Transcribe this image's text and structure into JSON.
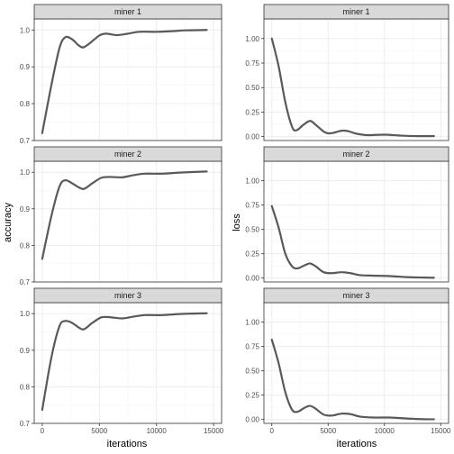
{
  "chart_data": {
    "type": "line",
    "layout": "facet-grid",
    "x_axis": {
      "label": "iterations",
      "ticks": [
        0,
        5000,
        10000,
        15000
      ],
      "tick_labels": [
        "0",
        "5000",
        "10000",
        "15000"
      ],
      "range": [
        -700,
        15700
      ]
    },
    "columns": [
      {
        "ylabel": "accuracy",
        "ylim": [
          0.7,
          1.03
        ],
        "yticks": [
          0.7,
          0.8,
          0.9,
          1.0
        ],
        "ytick_labels": [
          "0.7",
          "0.8",
          "0.9",
          "1.0"
        ],
        "panels": [
          {
            "strip": "miner 1",
            "points": [
              [
                0,
                0.72
              ],
              [
                800,
                0.85
              ],
              [
                1500,
                0.95
              ],
              [
                2000,
                0.98
              ],
              [
                2600,
                0.975
              ],
              [
                3200,
                0.958
              ],
              [
                3600,
                0.953
              ],
              [
                4200,
                0.965
              ],
              [
                5000,
                0.985
              ],
              [
                5600,
                0.99
              ],
              [
                6500,
                0.986
              ],
              [
                7500,
                0.99
              ],
              [
                8500,
                0.995
              ],
              [
                10000,
                0.995
              ],
              [
                11500,
                0.997
              ],
              [
                12500,
                0.999
              ],
              [
                14400,
                1.0
              ]
            ]
          },
          {
            "strip": "miner 2",
            "points": [
              [
                0,
                0.763
              ],
              [
                800,
                0.88
              ],
              [
                1500,
                0.96
              ],
              [
                2000,
                0.978
              ],
              [
                2600,
                0.97
              ],
              [
                3300,
                0.957
              ],
              [
                3700,
                0.955
              ],
              [
                4400,
                0.97
              ],
              [
                5200,
                0.985
              ],
              [
                6000,
                0.987
              ],
              [
                7000,
                0.986
              ],
              [
                8000,
                0.992
              ],
              [
                9000,
                0.996
              ],
              [
                10500,
                0.996
              ],
              [
                12000,
                0.999
              ],
              [
                14400,
                1.002
              ]
            ]
          },
          {
            "strip": "miner 3",
            "points": [
              [
                0,
                0.737
              ],
              [
                800,
                0.88
              ],
              [
                1500,
                0.965
              ],
              [
                2000,
                0.98
              ],
              [
                2600,
                0.975
              ],
              [
                3300,
                0.96
              ],
              [
                3700,
                0.958
              ],
              [
                4400,
                0.975
              ],
              [
                5200,
                0.99
              ],
              [
                6000,
                0.99
              ],
              [
                7000,
                0.987
              ],
              [
                8000,
                0.992
              ],
              [
                9000,
                0.996
              ],
              [
                10500,
                0.996
              ],
              [
                12000,
                0.999
              ],
              [
                14400,
                1.001
              ]
            ]
          }
        ]
      },
      {
        "ylabel": "loss",
        "ylim": [
          -0.04,
          1.2
        ],
        "yticks": [
          0.0,
          0.25,
          0.5,
          0.75,
          1.0
        ],
        "ytick_labels": [
          "0.00",
          "0.25",
          "0.50",
          "0.75",
          "1.00"
        ],
        "panels": [
          {
            "strip": "miner 1",
            "points": [
              [
                0,
                1.0
              ],
              [
                600,
                0.72
              ],
              [
                1200,
                0.35
              ],
              [
                1800,
                0.1
              ],
              [
                2200,
                0.065
              ],
              [
                2800,
                0.12
              ],
              [
                3400,
                0.16
              ],
              [
                3900,
                0.12
              ],
              [
                4700,
                0.045
              ],
              [
                5300,
                0.035
              ],
              [
                6200,
                0.06
              ],
              [
                6800,
                0.055
              ],
              [
                7500,
                0.03
              ],
              [
                8500,
                0.015
              ],
              [
                10000,
                0.02
              ],
              [
                11500,
                0.01
              ],
              [
                13000,
                0.005
              ],
              [
                14400,
                0.005
              ]
            ]
          },
          {
            "strip": "miner 2",
            "points": [
              [
                0,
                0.74
              ],
              [
                600,
                0.52
              ],
              [
                1200,
                0.25
              ],
              [
                1800,
                0.12
              ],
              [
                2300,
                0.1
              ],
              [
                2900,
                0.13
              ],
              [
                3400,
                0.15
              ],
              [
                3900,
                0.12
              ],
              [
                4600,
                0.06
              ],
              [
                5300,
                0.05
              ],
              [
                6200,
                0.06
              ],
              [
                7000,
                0.05
              ],
              [
                7800,
                0.03
              ],
              [
                9000,
                0.025
              ],
              [
                10500,
                0.02
              ],
              [
                12000,
                0.01
              ],
              [
                13500,
                0.005
              ],
              [
                14400,
                0.003
              ]
            ]
          },
          {
            "strip": "miner 3",
            "points": [
              [
                0,
                0.82
              ],
              [
                600,
                0.58
              ],
              [
                1200,
                0.28
              ],
              [
                1800,
                0.1
              ],
              [
                2300,
                0.08
              ],
              [
                2900,
                0.12
              ],
              [
                3400,
                0.14
              ],
              [
                3900,
                0.11
              ],
              [
                4600,
                0.05
              ],
              [
                5300,
                0.04
              ],
              [
                6200,
                0.06
              ],
              [
                7000,
                0.055
              ],
              [
                7800,
                0.03
              ],
              [
                9000,
                0.02
              ],
              [
                10500,
                0.02
              ],
              [
                12000,
                0.01
              ],
              [
                13500,
                0.003
              ],
              [
                14400,
                0.002
              ]
            ]
          }
        ]
      }
    ]
  }
}
